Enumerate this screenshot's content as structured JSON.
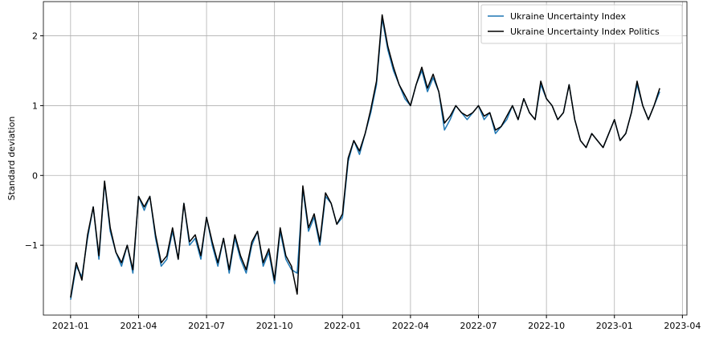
{
  "chart_data": {
    "type": "line",
    "ylabel": "Standard deviation",
    "x": [
      0,
      0.25,
      0.5,
      0.75,
      1,
      1.25,
      1.5,
      1.75,
      2,
      2.25,
      2.5,
      2.75,
      3,
      3.25,
      3.5,
      3.75,
      4,
      4.25,
      4.5,
      4.75,
      5,
      5.25,
      5.5,
      5.75,
      6,
      6.25,
      6.5,
      6.75,
      7,
      7.25,
      7.5,
      7.75,
      8,
      8.25,
      8.5,
      8.75,
      9,
      9.25,
      9.5,
      9.75,
      10,
      10.25,
      10.5,
      10.75,
      11,
      11.25,
      11.5,
      11.75,
      12,
      12.25,
      12.5,
      12.75,
      13,
      13.25,
      13.5,
      13.75,
      14,
      14.25,
      14.5,
      14.75,
      15,
      15.25,
      15.5,
      15.75,
      16,
      16.25,
      16.5,
      16.75,
      17,
      17.25,
      17.5,
      17.75,
      18,
      18.25,
      18.5,
      18.75,
      19,
      19.25,
      19.5,
      19.75,
      20,
      20.25,
      20.5,
      20.75,
      21,
      21.25,
      21.5,
      21.75,
      22,
      22.25,
      22.5,
      22.75,
      23,
      23.25,
      23.5,
      23.75,
      24,
      24.25,
      24.5,
      24.75,
      25,
      25.25,
      25.5,
      25.75,
      26
    ],
    "series": [
      {
        "name": "Ukraine Uncertainty Index",
        "color": "#1f77b4",
        "values": [
          -1.78,
          -1.3,
          -1.45,
          -0.9,
          -0.45,
          -1.2,
          -0.1,
          -0.8,
          -1.1,
          -1.3,
          -1.0,
          -1.4,
          -0.3,
          -0.5,
          -0.3,
          -0.9,
          -1.3,
          -1.2,
          -0.8,
          -1.2,
          -0.4,
          -1.0,
          -0.9,
          -1.2,
          -0.6,
          -1.0,
          -1.3,
          -0.9,
          -1.4,
          -0.9,
          -1.2,
          -1.4,
          -1.0,
          -0.8,
          -1.3,
          -1.1,
          -1.55,
          -0.8,
          -1.2,
          -1.35,
          -1.4,
          -0.2,
          -0.8,
          -0.6,
          -1.0,
          -0.3,
          -0.4,
          -0.7,
          -0.6,
          0.2,
          0.5,
          0.3,
          0.6,
          0.9,
          1.3,
          2.25,
          1.8,
          1.5,
          1.3,
          1.1,
          1.0,
          1.3,
          1.5,
          1.2,
          1.4,
          1.2,
          0.65,
          0.8,
          1.0,
          0.9,
          0.8,
          0.9,
          1.0,
          0.8,
          0.9,
          0.6,
          0.7,
          0.8,
          1.0,
          0.8,
          1.1,
          0.9,
          0.8,
          1.3,
          1.1,
          1.0,
          0.8,
          0.9,
          1.3,
          0.8,
          0.5,
          0.4,
          0.6,
          0.5,
          0.4,
          0.6,
          0.8,
          0.5,
          0.6,
          0.9,
          1.3,
          1.0,
          0.8,
          1.0,
          1.2
        ]
      },
      {
        "name": "Ukraine Uncertainty Index Politics",
        "color": "#000000",
        "values": [
          -1.75,
          -1.25,
          -1.5,
          -0.85,
          -0.45,
          -1.15,
          -0.08,
          -0.75,
          -1.1,
          -1.25,
          -1.0,
          -1.35,
          -0.3,
          -0.45,
          -0.3,
          -0.85,
          -1.25,
          -1.15,
          -0.75,
          -1.2,
          -0.4,
          -0.95,
          -0.85,
          -1.15,
          -0.6,
          -0.95,
          -1.25,
          -0.9,
          -1.35,
          -0.85,
          -1.15,
          -1.35,
          -0.95,
          -0.8,
          -1.25,
          -1.05,
          -1.5,
          -0.75,
          -1.15,
          -1.3,
          -1.7,
          -0.15,
          -0.75,
          -0.55,
          -0.95,
          -0.25,
          -0.4,
          -0.7,
          -0.55,
          0.25,
          0.5,
          0.35,
          0.6,
          0.95,
          1.35,
          2.3,
          1.85,
          1.55,
          1.3,
          1.15,
          1.0,
          1.3,
          1.55,
          1.25,
          1.45,
          1.2,
          0.75,
          0.85,
          1.0,
          0.9,
          0.85,
          0.9,
          1.0,
          0.85,
          0.9,
          0.65,
          0.7,
          0.85,
          1.0,
          0.8,
          1.1,
          0.9,
          0.8,
          1.35,
          1.1,
          1.0,
          0.8,
          0.9,
          1.3,
          0.8,
          0.5,
          0.4,
          0.6,
          0.5,
          0.4,
          0.6,
          0.8,
          0.5,
          0.6,
          0.9,
          1.35,
          1.0,
          0.8,
          1.0,
          1.25
        ]
      }
    ],
    "xlim": [
      -1.2,
      27.2
    ],
    "xticks": [
      {
        "value": 0,
        "label": "2021-01"
      },
      {
        "value": 3,
        "label": "2021-04"
      },
      {
        "value": 6,
        "label": "2021-07"
      },
      {
        "value": 9,
        "label": "2021-10"
      },
      {
        "value": 12,
        "label": "2022-01"
      },
      {
        "value": 15,
        "label": "2022-04"
      },
      {
        "value": 18,
        "label": "2022-07"
      },
      {
        "value": 21,
        "label": "2022-10"
      },
      {
        "value": 24,
        "label": "2023-01"
      },
      {
        "value": 27,
        "label": "2023-04"
      }
    ],
    "ylim": [
      -2.0,
      2.49
    ],
    "yticks": [
      {
        "value": -1,
        "label": "−1"
      },
      0,
      1,
      2
    ],
    "grid": true,
    "legend": "upper right"
  }
}
